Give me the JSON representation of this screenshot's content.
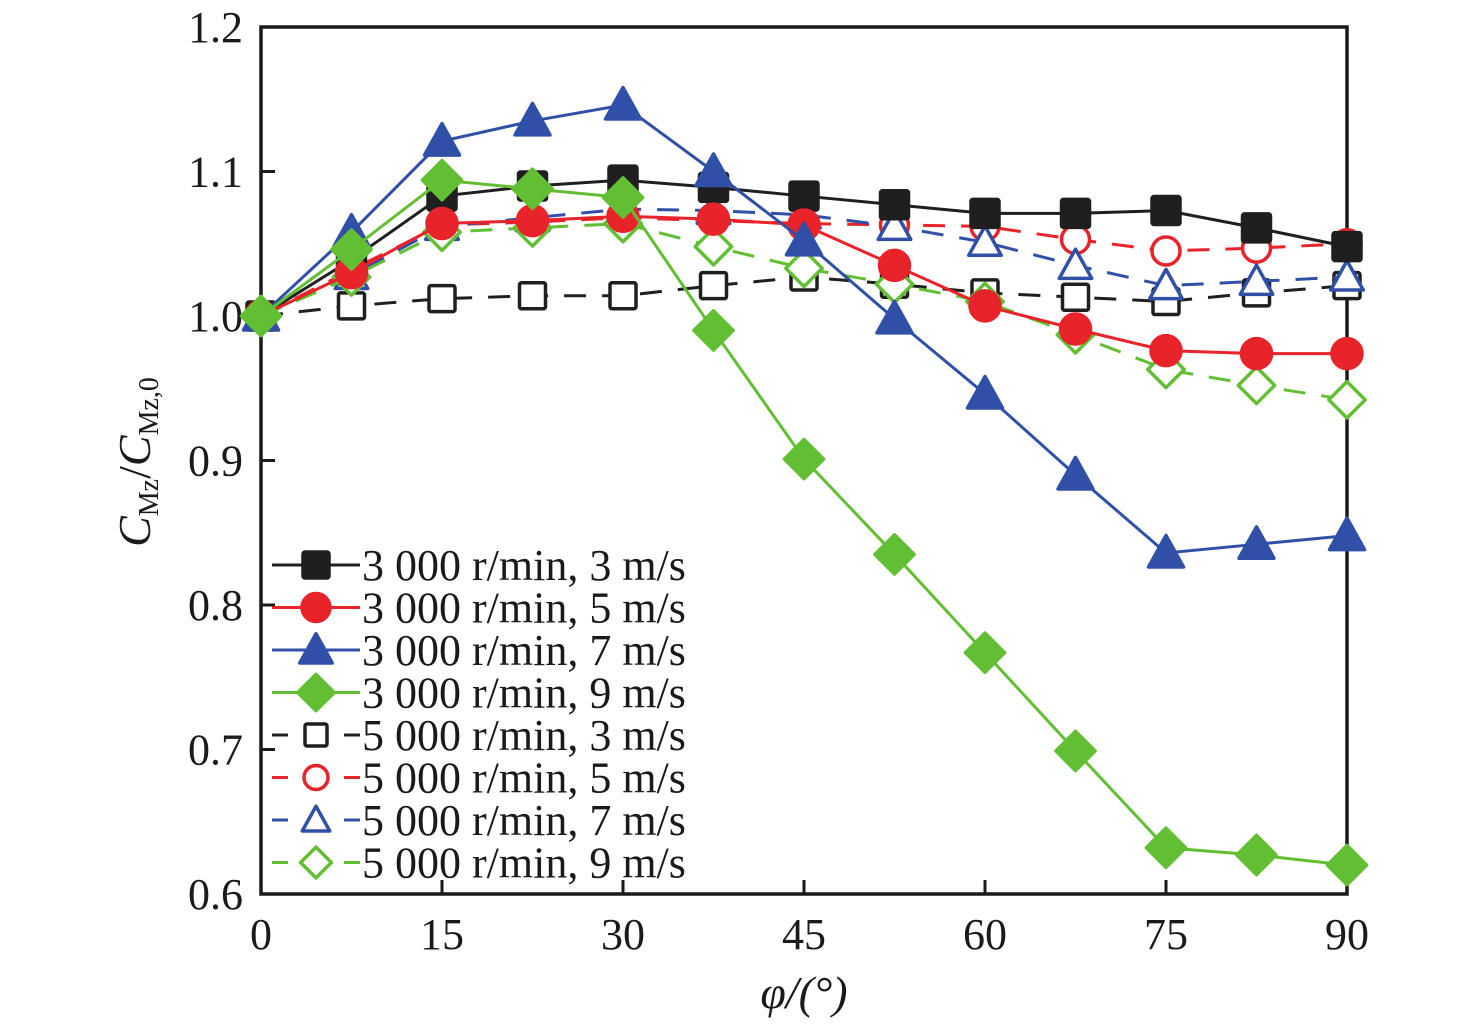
{
  "chart_data": {
    "type": "line",
    "title": "",
    "xlabel": "φ/(°)",
    "ylabel_parts": {
      "main": "C",
      "sub1": "Mz",
      "sep": "/",
      "main2": "C",
      "sub2": "Mz,0"
    },
    "ylabel": "C_Mz/C_Mz,0",
    "xlim": [
      0,
      90
    ],
    "ylim": [
      0.6,
      1.2
    ],
    "xticks": [
      0,
      15,
      30,
      45,
      60,
      75,
      90
    ],
    "xtick_labels": [
      "0",
      "15",
      "30",
      "45",
      "60",
      "75",
      "90"
    ],
    "yticks": [
      0.6,
      0.7,
      0.8,
      0.9,
      1.0,
      1.1,
      1.2
    ],
    "ytick_labels": [
      "0.6",
      "0.7",
      "0.8",
      "0.9",
      "1.0",
      "1.1",
      "1.2"
    ],
    "grid": false,
    "legend_position": "bottom-left",
    "x": [
      0,
      7.5,
      15,
      22.5,
      30,
      37.5,
      45,
      52.5,
      60,
      67.5,
      75,
      82.5,
      90
    ],
    "series": [
      {
        "name": "3 000 r/min, 3 m/s",
        "color": "#1f1f1f",
        "marker": "square",
        "filled": true,
        "dashed": false,
        "values": [
          1.0,
          1.039,
          1.083,
          1.09,
          1.094,
          1.089,
          1.083,
          1.077,
          1.071,
          1.071,
          1.073,
          1.061,
          1.048
        ]
      },
      {
        "name": "3 000 r/min, 5 m/s",
        "color": "#e8232a",
        "marker": "circle",
        "filled": true,
        "dashed": false,
        "values": [
          1.0,
          1.03,
          1.064,
          1.066,
          1.069,
          1.067,
          1.063,
          1.035,
          1.007,
          0.991,
          0.976,
          0.974,
          0.974
        ]
      },
      {
        "name": "3 000 r/min, 7 m/s",
        "color": "#3050a8",
        "marker": "triangle",
        "filled": true,
        "dashed": false,
        "values": [
          1.0,
          1.058,
          1.121,
          1.135,
          1.146,
          1.1,
          1.052,
          0.998,
          0.946,
          0.89,
          0.836,
          0.842,
          0.848
        ]
      },
      {
        "name": "3 000 r/min, 9 m/s",
        "color": "#62bf33",
        "marker": "diamond",
        "filled": true,
        "dashed": false,
        "values": [
          1.0,
          1.046,
          1.094,
          1.088,
          1.082,
          0.99,
          0.901,
          0.835,
          0.767,
          0.699,
          0.632,
          0.627,
          0.62
        ]
      },
      {
        "name": "5 000 r/min, 3 m/s",
        "color": "#1f1f1f",
        "marker": "square",
        "filled": false,
        "dashed": true,
        "values": [
          1.0,
          1.007,
          1.012,
          1.014,
          1.014,
          1.021,
          1.027,
          1.022,
          1.016,
          1.013,
          1.01,
          1.016,
          1.021
        ]
      },
      {
        "name": "5 000 r/min, 5 m/s",
        "color": "#e8232a",
        "marker": "circle",
        "filled": false,
        "dashed": true,
        "values": [
          1.0,
          1.032,
          1.063,
          1.065,
          1.068,
          1.066,
          1.064,
          1.063,
          1.062,
          1.053,
          1.045,
          1.047,
          1.05
        ]
      },
      {
        "name": "5 000 r/min, 7 m/s",
        "color": "#3050a8",
        "marker": "triangle",
        "filled": false,
        "dashed": true,
        "values": [
          1.0,
          1.028,
          1.062,
          1.068,
          1.074,
          1.073,
          1.07,
          1.062,
          1.051,
          1.035,
          1.021,
          1.024,
          1.027
        ]
      },
      {
        "name": "5 000 r/min, 9 m/s",
        "color": "#62bf33",
        "marker": "diamond",
        "filled": false,
        "dashed": true,
        "values": [
          1.0,
          1.027,
          1.058,
          1.061,
          1.064,
          1.048,
          1.033,
          1.022,
          1.01,
          0.987,
          0.963,
          0.952,
          0.942
        ]
      }
    ]
  }
}
